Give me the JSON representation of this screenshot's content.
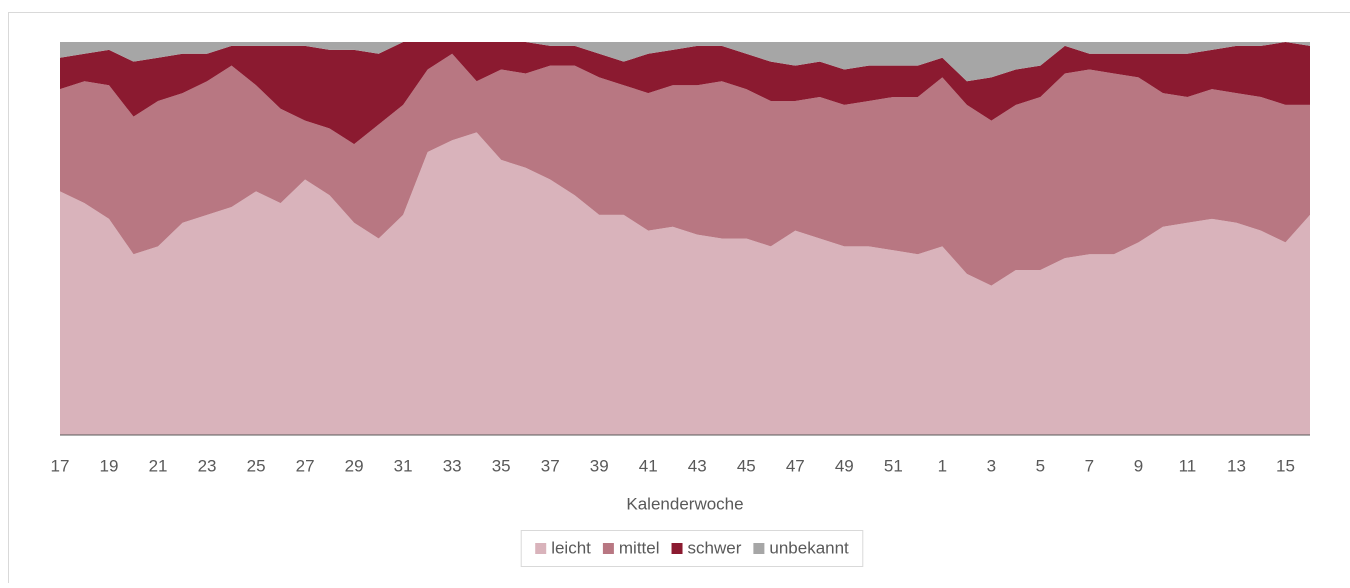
{
  "chart_data": {
    "type": "area",
    "stacked": true,
    "x_label": "Kalenderwoche",
    "categories": [
      "17",
      null,
      "19",
      null,
      "21",
      null,
      "23",
      null,
      "25",
      null,
      "27",
      null,
      "29",
      null,
      "31",
      null,
      "33",
      null,
      "35",
      null,
      "37",
      null,
      "39",
      null,
      "41",
      null,
      "43",
      null,
      "45",
      null,
      "47",
      null,
      "49",
      null,
      "51",
      null,
      "1",
      null,
      "3",
      null,
      "5",
      null,
      "7",
      null,
      "9",
      null,
      "11",
      null,
      "13",
      null,
      "15",
      null
    ],
    "series": [
      {
        "name": "leicht",
        "color": "#d9b3bb",
        "values": [
          62,
          59,
          55,
          46,
          48,
          54,
          56,
          58,
          62,
          59,
          65,
          61,
          54,
          50,
          56,
          72,
          75,
          77,
          70,
          68,
          65,
          61,
          56,
          56,
          52,
          53,
          51,
          50,
          50,
          48,
          52,
          50,
          48,
          48,
          47,
          46,
          48,
          41,
          38,
          42,
          42,
          45,
          46,
          46,
          49,
          53,
          54,
          55,
          54,
          52,
          49,
          56
        ]
      },
      {
        "name": "mittel",
        "color": "#b87782",
        "values": [
          26,
          31,
          34,
          35,
          37,
          33,
          34,
          36,
          27,
          24,
          15,
          17,
          20,
          29,
          28,
          21,
          22,
          13,
          23,
          24,
          29,
          33,
          35,
          33,
          35,
          36,
          38,
          40,
          38,
          37,
          33,
          36,
          36,
          37,
          39,
          40,
          43,
          43,
          42,
          42,
          44,
          47,
          47,
          46,
          42,
          34,
          32,
          33,
          33,
          34,
          35,
          28
        ]
      },
      {
        "name": "schwer",
        "color": "#8b1a30",
        "values": [
          8,
          7,
          9,
          14,
          11,
          10,
          7,
          5,
          10,
          16,
          19,
          20,
          24,
          18,
          16,
          7,
          3,
          10,
          7,
          8,
          5,
          5,
          6,
          6,
          10,
          9,
          10,
          9,
          9,
          10,
          9,
          9,
          9,
          9,
          8,
          8,
          5,
          6,
          11,
          9,
          8,
          7,
          4,
          5,
          6,
          10,
          11,
          10,
          12,
          13,
          16,
          15
        ]
      },
      {
        "name": "unbekannt",
        "color": "#a6a6a6",
        "values": [
          4,
          3,
          2,
          5,
          4,
          3,
          3,
          1,
          1,
          1,
          1,
          2,
          2,
          3,
          0,
          0,
          0,
          0,
          0,
          0,
          1,
          1,
          3,
          5,
          3,
          2,
          1,
          1,
          3,
          5,
          6,
          5,
          7,
          6,
          6,
          6,
          4,
          10,
          9,
          7,
          6,
          1,
          3,
          3,
          3,
          3,
          3,
          2,
          1,
          1,
          0,
          1
        ]
      }
    ],
    "ylim": [
      0,
      100
    ],
    "legend": "bottom"
  }
}
